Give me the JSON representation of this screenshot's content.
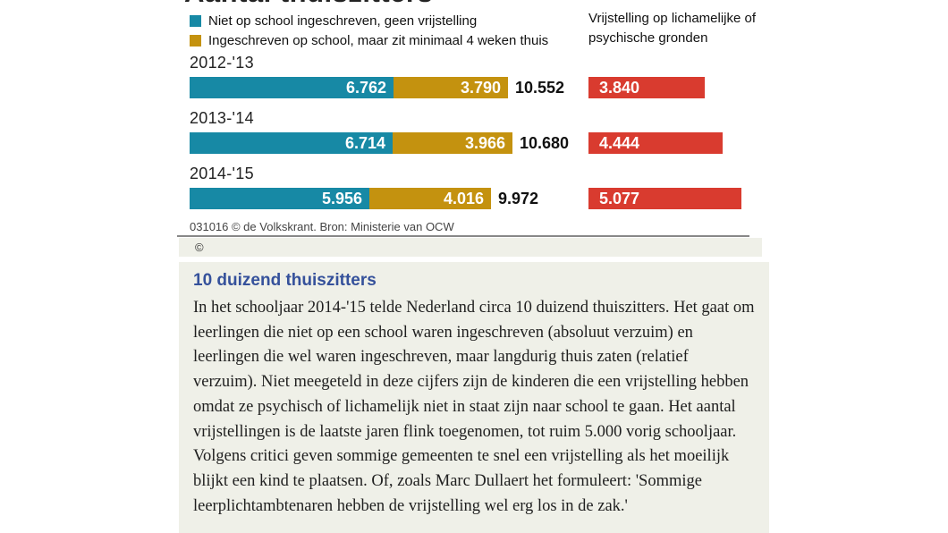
{
  "title": "Aantal thuiszitters",
  "legend": {
    "items": [
      {
        "label": "Niet op school ingeschreven, geen vrijstelling",
        "color": "#1789A5"
      },
      {
        "label": "Ingeschreven op school, maar zit minimaal 4 weken thuis",
        "color": "#C4920F"
      }
    ]
  },
  "right_header": "Vrijstelling op lichamelijke of psychische gronden",
  "chart_data": {
    "type": "bar",
    "orientation": "horizontal",
    "categories": [
      "2012-'13",
      "2013-'14",
      "2014-'15"
    ],
    "series": [
      {
        "name": "Niet op school ingeschreven, geen vrijstelling",
        "color": "#1789A5",
        "values": [
          6762,
          6714,
          5956
        ],
        "labels": [
          "6.762",
          "6.714",
          "5.956"
        ]
      },
      {
        "name": "Ingeschreven op school, maar zit minimaal 4 weken thuis",
        "color": "#C4920F",
        "values": [
          3790,
          3966,
          4016
        ],
        "labels": [
          "3.790",
          "3.966",
          "4.016"
        ]
      },
      {
        "name": "Vrijstelling op lichamelijke of psychische gronden",
        "color": "#D93B2F",
        "values": [
          3840,
          4444,
          5077
        ],
        "labels": [
          "3.840",
          "4.444",
          "5.077"
        ]
      }
    ],
    "totals": [
      10552,
      10680,
      9972
    ],
    "total_labels": [
      "10.552",
      "10.680",
      "9.972"
    ],
    "legend_position": "top",
    "grid": false
  },
  "source": "031016 © de Volkskrant. Bron: Ministerie van OCW",
  "copyright_symbol": "©",
  "article": {
    "heading": "10 duizend thuiszitters",
    "heading_color": "#35519B",
    "background": "#EFF0E8",
    "body": "In het schooljaar 2014-'15 telde Nederland circa 10 duizend thuiszitters. Het gaat om leerlingen die niet op een school waren ingeschreven (absoluut verzuim) en leerlingen die wel waren ingeschreven, maar langdurig thuis zaten (relatief verzuim). Niet meegeteld in deze cijfers zijn de kinderen die een vrijstelling hebben omdat ze psychisch of lichamelijk niet in staat zijn naar school te gaan. Het aantal vrijstellingen is de laatste jaren flink toegenomen, tot ruim 5.000 vorig schooljaar. Volgens critici geven sommige gemeenten te snel een vrijstelling als het moeilijk blijkt een kind te plaatsen. Of, zoals Marc Dullaert het formuleert: 'Sommige leerplichtambtenaren hebben de vrijstelling wel erg los in de zak.'"
  }
}
